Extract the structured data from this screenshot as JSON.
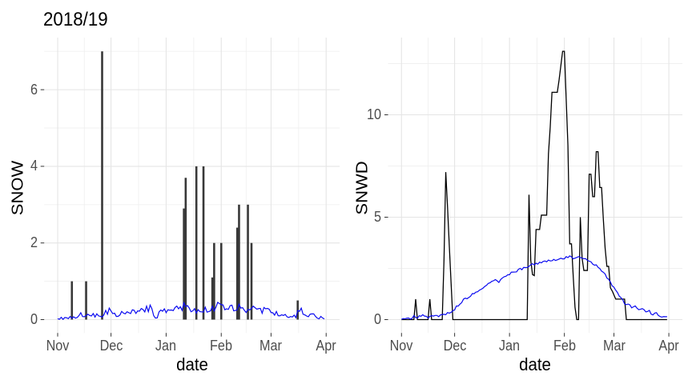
{
  "title": "2018/19",
  "colors": {
    "snow_bar": "#383838",
    "snwd_line": "#000000",
    "mean_line": "#0a0af0",
    "grid_major": "#e5e5e5",
    "grid_minor": "#f0f0f0",
    "axis_text": "#4d4d4d",
    "axis_title": "#000000",
    "tick_mark": "#333333",
    "background": "#ffffff"
  },
  "chart_data": [
    {
      "type": "bar",
      "panel": "left",
      "title": "2018/19",
      "ylabel": "SNOW",
      "xlabel": "date",
      "x_tick_labels": [
        "Nov",
        "Dec",
        "Jan",
        "Feb",
        "Mar",
        "Apr"
      ],
      "x_tick_days": [
        0,
        30,
        61,
        92,
        120,
        151
      ],
      "x_minor_days": [
        15,
        45.5,
        76.5,
        106,
        135.5
      ],
      "y_tick_labels": [
        "0",
        "2",
        "4",
        "6"
      ],
      "y_major": [
        0,
        2,
        4,
        6
      ],
      "y_minor": [
        1,
        3,
        5,
        7
      ],
      "xlim": [
        -7.57,
        158.6
      ],
      "ylim": [
        -0.3486,
        7.3594
      ],
      "grid": true,
      "legend": "none",
      "x_origin_label": "day 0 = Nov 1",
      "bars_day_value": [
        [
          8,
          1.0
        ],
        [
          16,
          1.0
        ],
        [
          25,
          7.0
        ],
        [
          71,
          2.9
        ],
        [
          72,
          3.7
        ],
        [
          78,
          4.0
        ],
        [
          82,
          4.0
        ],
        [
          87,
          1.1
        ],
        [
          88,
          2.0
        ],
        [
          92,
          2.0
        ],
        [
          101,
          2.4
        ],
        [
          102,
          3.0
        ],
        [
          107,
          3.0
        ],
        [
          109,
          2.0
        ],
        [
          135,
          0.5
        ]
      ],
      "mean_snow_by_day": [
        0.022,
        0.008,
        0.06,
        0.005,
        0.054,
        0.047,
        0.026,
        0.081,
        0.034,
        0.073,
        0.037,
        0.056,
        0.106,
        0.18,
        0.079,
        0.076,
        0.103,
        0.14,
        0.108,
        0.095,
        0.158,
        0.067,
        0.151,
        0.096,
        0.084,
        0.067,
        0.124,
        0.24,
        0.139,
        0.3,
        0.226,
        0.156,
        0.169,
        0.082,
        0.086,
        0.119,
        0.214,
        0.169,
        0.15,
        0.204,
        0.181,
        0.157,
        0.256,
        0.243,
        0.161,
        0.227,
        0.22,
        0.289,
        0.264,
        0.2,
        0.351,
        0.207,
        0.38,
        0.282,
        0.101,
        0.04,
        0.046,
        0.199,
        0.25,
        0.219,
        0.281,
        0.18,
        0.257,
        0.245,
        0.25,
        0.234,
        0.315,
        0.352,
        0.281,
        0.335,
        0.239,
        0.44,
        0.335,
        0.367,
        0.301,
        0.204,
        0.228,
        0.287,
        0.169,
        0.258,
        0.207,
        0.202,
        0.196,
        0.323,
        0.195,
        0.21,
        0.229,
        0.348,
        0.225,
        0.323,
        0.45,
        0.418,
        0.391,
        0.384,
        0.258,
        0.281,
        0.268,
        0.365,
        0.377,
        0.229,
        0.238,
        0.254,
        0.4,
        0.3,
        0.312,
        0.242,
        0.186,
        0.265,
        0.255,
        0.293,
        0.35,
        0.311,
        0.273,
        0.287,
        0.293,
        0.165,
        0.316,
        0.283,
        0.291,
        0.269,
        0.185,
        0.178,
        0.115,
        0.213,
        0.102,
        0.1,
        0.125,
        0.108,
        0.135,
        0.072,
        0.055,
        0.081,
        0.069,
        0.117,
        0.05,
        0.238,
        0.215,
        0.3,
        0.14,
        0.124,
        0.094,
        0.076,
        0.142,
        0.149,
        0.15,
        0.085,
        0.039,
        0.02,
        0.084,
        0.041,
        0.02
      ]
    },
    {
      "type": "line",
      "panel": "right",
      "ylabel": "SNWD",
      "xlabel": "date",
      "x_tick_labels": [
        "Nov",
        "Dec",
        "Jan",
        "Feb",
        "Mar",
        "Apr"
      ],
      "x_tick_days": [
        0,
        30,
        61,
        92,
        120,
        151
      ],
      "x_minor_days": [
        15,
        45.5,
        76.5,
        106,
        135.5
      ],
      "y_tick_labels": [
        "0",
        "5",
        "10"
      ],
      "y_major": [
        0,
        5,
        10
      ],
      "y_minor": [
        2.5,
        7.5,
        12.5
      ],
      "xlim": [
        -7.6,
        158.65
      ],
      "ylim": [
        -0.652,
        13.77
      ],
      "grid": true,
      "legend": "none",
      "x_origin_label": "day 0 = Nov 1",
      "snwd_by_day": [
        0.0,
        0.0,
        0.0,
        0.0,
        0.0,
        0.0,
        0.0,
        0.0,
        1.0,
        0.0,
        0.0,
        0.0,
        0.0,
        0.0,
        0.0,
        0.0,
        1.0,
        0.0,
        0.0,
        0.0,
        0.0,
        0.0,
        0.0,
        0.0,
        2.9,
        7.2,
        5.5,
        3.6,
        1.8,
        0.0,
        0.0,
        0.0,
        0.0,
        0.0,
        0.0,
        0.0,
        0.0,
        0.0,
        0.0,
        0.0,
        0.0,
        0.0,
        0.0,
        0.0,
        0.0,
        0.0,
        0.0,
        0.0,
        0.0,
        0.0,
        0.0,
        0.0,
        0.0,
        0.0,
        0.0,
        0.0,
        0.0,
        0.0,
        0.0,
        0.0,
        0.0,
        0.0,
        0.0,
        0.0,
        0.0,
        0.0,
        0.0,
        0.0,
        0.0,
        0.0,
        0.0,
        0,
        6.1,
        2.9,
        2.2,
        2.15,
        4.4,
        4.4,
        4.4,
        5.1,
        5.1,
        5.1,
        5.1,
        8.1,
        9.4,
        11.1,
        11.1,
        11.1,
        11.1,
        11.7,
        12.4,
        13.1,
        13.1,
        10.8,
        8.5,
        3.7,
        3.7,
        2.1,
        0.6,
        0,
        0,
        5.0,
        3.0,
        2.4,
        2.4,
        2.4,
        7.1,
        7.1,
        6.0,
        6.0,
        8.2,
        8.2,
        6.45,
        6.45,
        4.9,
        3.5,
        2.6,
        2.6,
        1.55,
        1.4,
        1.2,
        1.0,
        1.0,
        1.0,
        1.0,
        1.0,
        1.0,
        0.0,
        0.0,
        0.0,
        0.0,
        0.0,
        0.0,
        0.0,
        0.0,
        0.0,
        0.0,
        0.0,
        0.0,
        0.0,
        0.0,
        0.0,
        0.0,
        0.0,
        0.0,
        0.0,
        0.0,
        0.0,
        0.0,
        0.0,
        0.0
      ],
      "mean_snwd_by_day": [
        0.011,
        0.051,
        0.038,
        0.069,
        0.078,
        0.022,
        0.061,
        0.197,
        0.104,
        0.071,
        0.188,
        0.163,
        0.237,
        0.171,
        0.162,
        0.082,
        0.152,
        0.194,
        0.173,
        0.204,
        0.204,
        0.145,
        0.228,
        0.25,
        0.258,
        0.241,
        0.345,
        0.315,
        0.354,
        0.432,
        0.474,
        0.666,
        0.658,
        0.753,
        0.829,
        0.998,
        1.048,
        1.019,
        1.08,
        1.139,
        1.271,
        1.266,
        1.341,
        1.358,
        1.437,
        1.481,
        1.534,
        1.617,
        1.674,
        1.767,
        1.8,
        1.867,
        1.899,
        1.954,
        1.894,
        1.813,
        1.956,
        2.034,
        2.095,
        2.115,
        2.189,
        2.191,
        2.316,
        2.321,
        2.323,
        2.332,
        2.454,
        2.504,
        2.438,
        2.55,
        2.54,
        2.547,
        2.597,
        2.683,
        2.728,
        2.67,
        2.753,
        2.71,
        2.804,
        2.771,
        2.842,
        2.863,
        2.821,
        2.908,
        2.866,
        2.873,
        2.941,
        2.888,
        2.917,
        2.957,
        2.997,
        2.965,
        2.97,
        3.074,
        3.026,
        3.11,
        3.064,
        2.967,
        3.002,
        3.036,
        3.076,
        3.037,
        3.0,
        2.973,
        2.975,
        2.894,
        2.852,
        2.824,
        2.711,
        2.658,
        2.673,
        2.556,
        2.492,
        2.366,
        2.311,
        2.229,
        2.034,
        1.966,
        1.835,
        1.645,
        1.581,
        1.436,
        1.32,
        1.144,
        1.069,
        0.96,
        0.767,
        0.732,
        0.759,
        0.721,
        0.573,
        0.625,
        0.67,
        0.56,
        0.485,
        0.504,
        0.536,
        0.486,
        0.378,
        0.396,
        0.45,
        0.268,
        0.228,
        0.316,
        0.339,
        0.209,
        0.153,
        0.121,
        0.146,
        0.143,
        0.142
      ]
    }
  ]
}
